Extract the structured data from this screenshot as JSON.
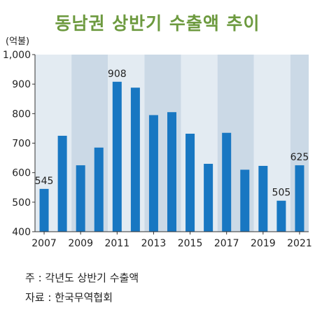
{
  "title": "동남권 상반기 수출액 추이",
  "unit": "(억불)",
  "note": "주 : 각년도 상반기 수출액",
  "source": "자료 : 한국무역협회",
  "colors": {
    "bar": "#1877c2",
    "band_light": "#e3ebf2",
    "band_dark": "#cbd9e6",
    "title": "#6d9a3f"
  },
  "chart_data": {
    "type": "bar",
    "title": "동남권 상반기 수출액 추이",
    "ylabel": "(억불)",
    "xlabel": "",
    "ylim": [
      400,
      1000
    ],
    "yticks": [
      "1,000",
      "900",
      "800",
      "700",
      "600",
      "500",
      "400"
    ],
    "categories": [
      "2007",
      "2008",
      "2009",
      "2010",
      "2011",
      "2012",
      "2013",
      "2014",
      "2015",
      "2016",
      "2017",
      "2018",
      "2019",
      "2020",
      "2021"
    ],
    "x_tick_labels": [
      "2007",
      "2009",
      "2011",
      "2013",
      "2015",
      "2017",
      "2019",
      "2021"
    ],
    "values": [
      545,
      725,
      625,
      685,
      908,
      888,
      795,
      805,
      732,
      630,
      735,
      610,
      623,
      505,
      625
    ],
    "data_labels": [
      {
        "category": "2007",
        "label": "545"
      },
      {
        "category": "2011",
        "label": "908"
      },
      {
        "category": "2020",
        "label": "505"
      },
      {
        "category": "2021",
        "label": "625"
      }
    ],
    "grid": false,
    "legend": "none"
  }
}
